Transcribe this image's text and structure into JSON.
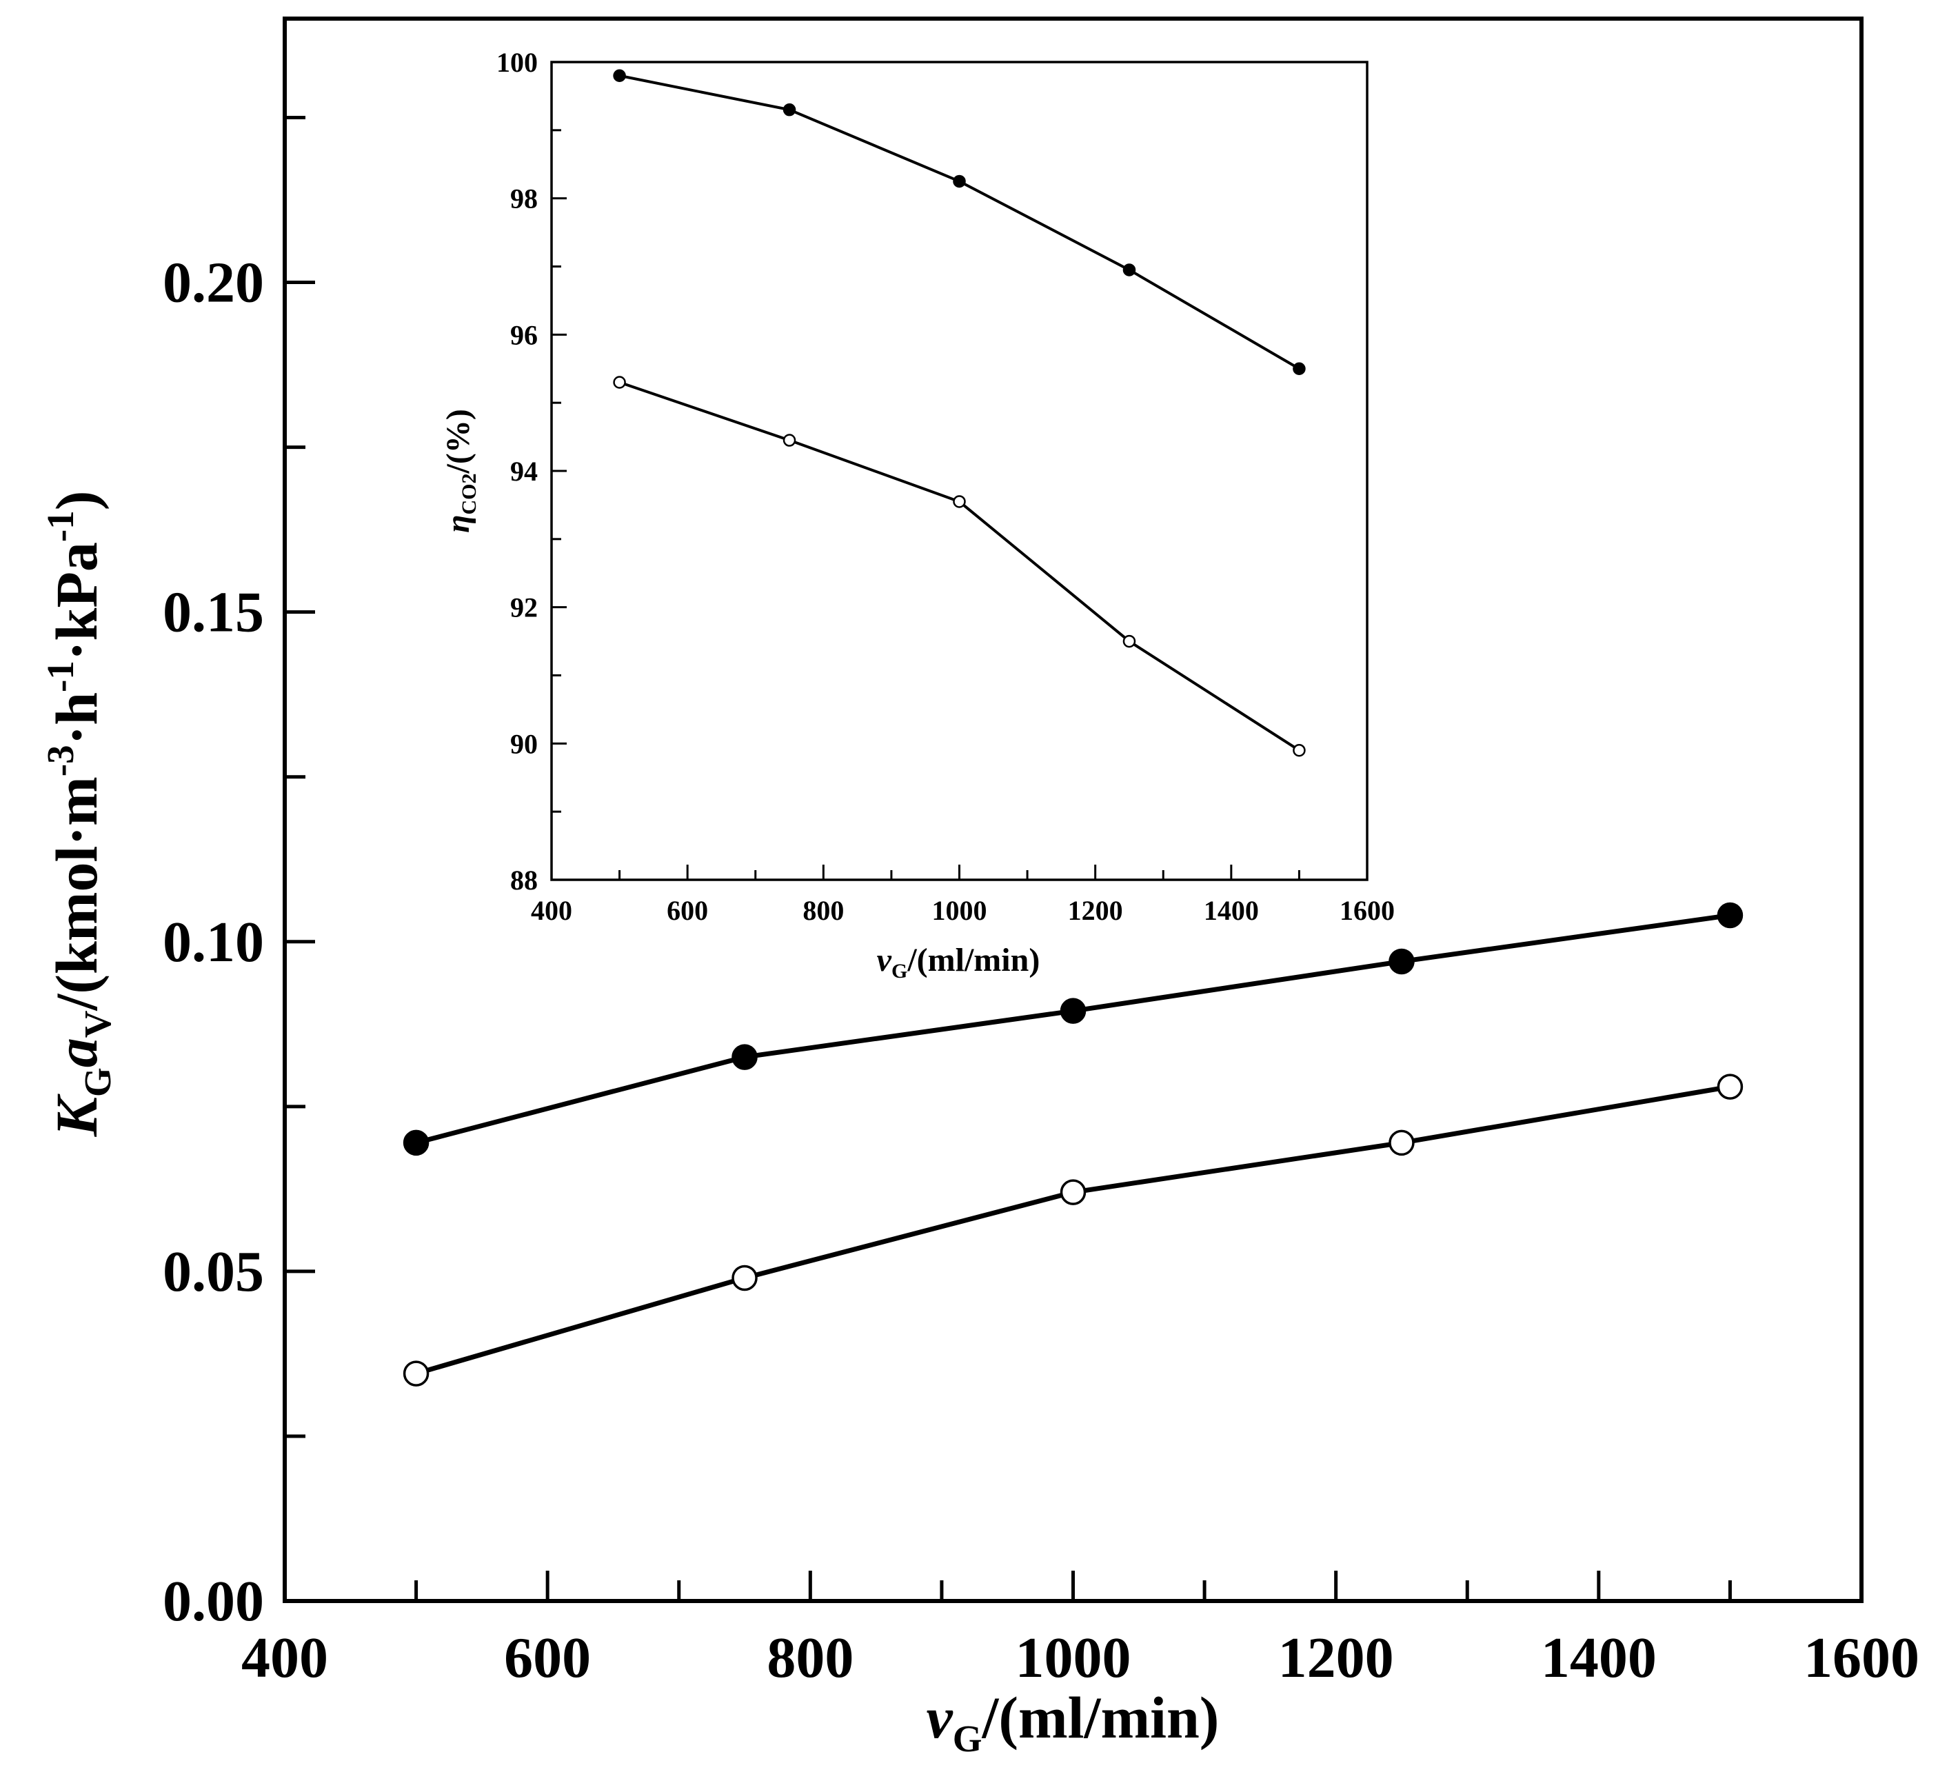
{
  "chart_data": [
    {
      "name": "main",
      "type": "line",
      "title": "",
      "xlabel": {
        "var": "v",
        "sub": "G",
        "rest": "/(ml/min)"
      },
      "ylabel": {
        "var1": "K",
        "sub1": "G",
        "var2": "a",
        "sub2": "V",
        "unit_a": "/(kmol·m",
        "sup_a": "-3",
        "unit_b": "·h",
        "sup_b": "-1",
        "unit_c": "·kPa",
        "sup_c": "-1",
        "unit_d": ")"
      },
      "xlim": [
        400,
        1600
      ],
      "ylim": [
        0,
        0.24
      ],
      "xticks": [
        400,
        600,
        800,
        1000,
        1200,
        1400,
        1600
      ],
      "xtick_labels": [
        "400",
        "600",
        "800",
        "1000",
        "1200",
        "1400",
        "1600"
      ],
      "yticks": [
        0.0,
        0.05,
        0.1,
        0.15,
        0.2
      ],
      "ytick_labels": [
        "0.00",
        "0.05",
        "0.10",
        "0.15",
        "0.20"
      ],
      "x": [
        500,
        750,
        1000,
        1250,
        1500
      ],
      "series": [
        {
          "name": "filled",
          "marker": "filled-circle",
          "values": [
            0.0695,
            0.0825,
            0.0895,
            0.097,
            0.104
          ]
        },
        {
          "name": "open",
          "marker": "open-circle",
          "values": [
            0.0345,
            0.049,
            0.062,
            0.0695,
            0.078
          ]
        }
      ]
    },
    {
      "name": "inset",
      "type": "line",
      "title": "",
      "xlabel": {
        "var": "v",
        "sub": "G",
        "rest": "/(ml/min)"
      },
      "ylabel": {
        "var": "η",
        "sub": "CO2",
        "rest": "/(%)"
      },
      "xlim": [
        400,
        1600
      ],
      "ylim": [
        88,
        100
      ],
      "xticks": [
        400,
        600,
        800,
        1000,
        1200,
        1400,
        1600
      ],
      "xtick_labels": [
        "400",
        "600",
        "800",
        "1000",
        "1200",
        "1400",
        "1600"
      ],
      "yticks": [
        88,
        90,
        92,
        94,
        96,
        98,
        100
      ],
      "ytick_labels": [
        "88",
        "90",
        "92",
        "94",
        "96",
        "98",
        "100"
      ],
      "x": [
        500,
        750,
        1000,
        1250,
        1500
      ],
      "series": [
        {
          "name": "filled",
          "marker": "filled-circle",
          "values": [
            99.8,
            99.3,
            98.25,
            96.95,
            95.5
          ]
        },
        {
          "name": "open",
          "marker": "open-circle",
          "values": [
            95.3,
            94.45,
            93.55,
            91.5,
            89.9
          ]
        }
      ]
    }
  ]
}
